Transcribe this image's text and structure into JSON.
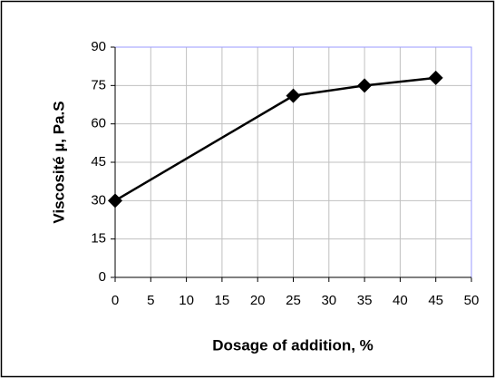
{
  "chart_data": {
    "type": "line",
    "x_label": "Dosage of addition, %",
    "y_label": "Viscosité µ, Pa.S",
    "x": [
      0,
      25,
      35,
      45
    ],
    "series": [
      {
        "color": "#000000",
        "values": [
          30,
          71,
          75,
          78
        ]
      }
    ],
    "xlim": [
      0,
      50
    ],
    "xticks": [
      0,
      5,
      10,
      15,
      20,
      25,
      30,
      35,
      40,
      45,
      50
    ],
    "ylim": [
      0,
      90
    ],
    "yticks": [
      0,
      15,
      30,
      45,
      60,
      75,
      90
    ],
    "grid": true
  }
}
